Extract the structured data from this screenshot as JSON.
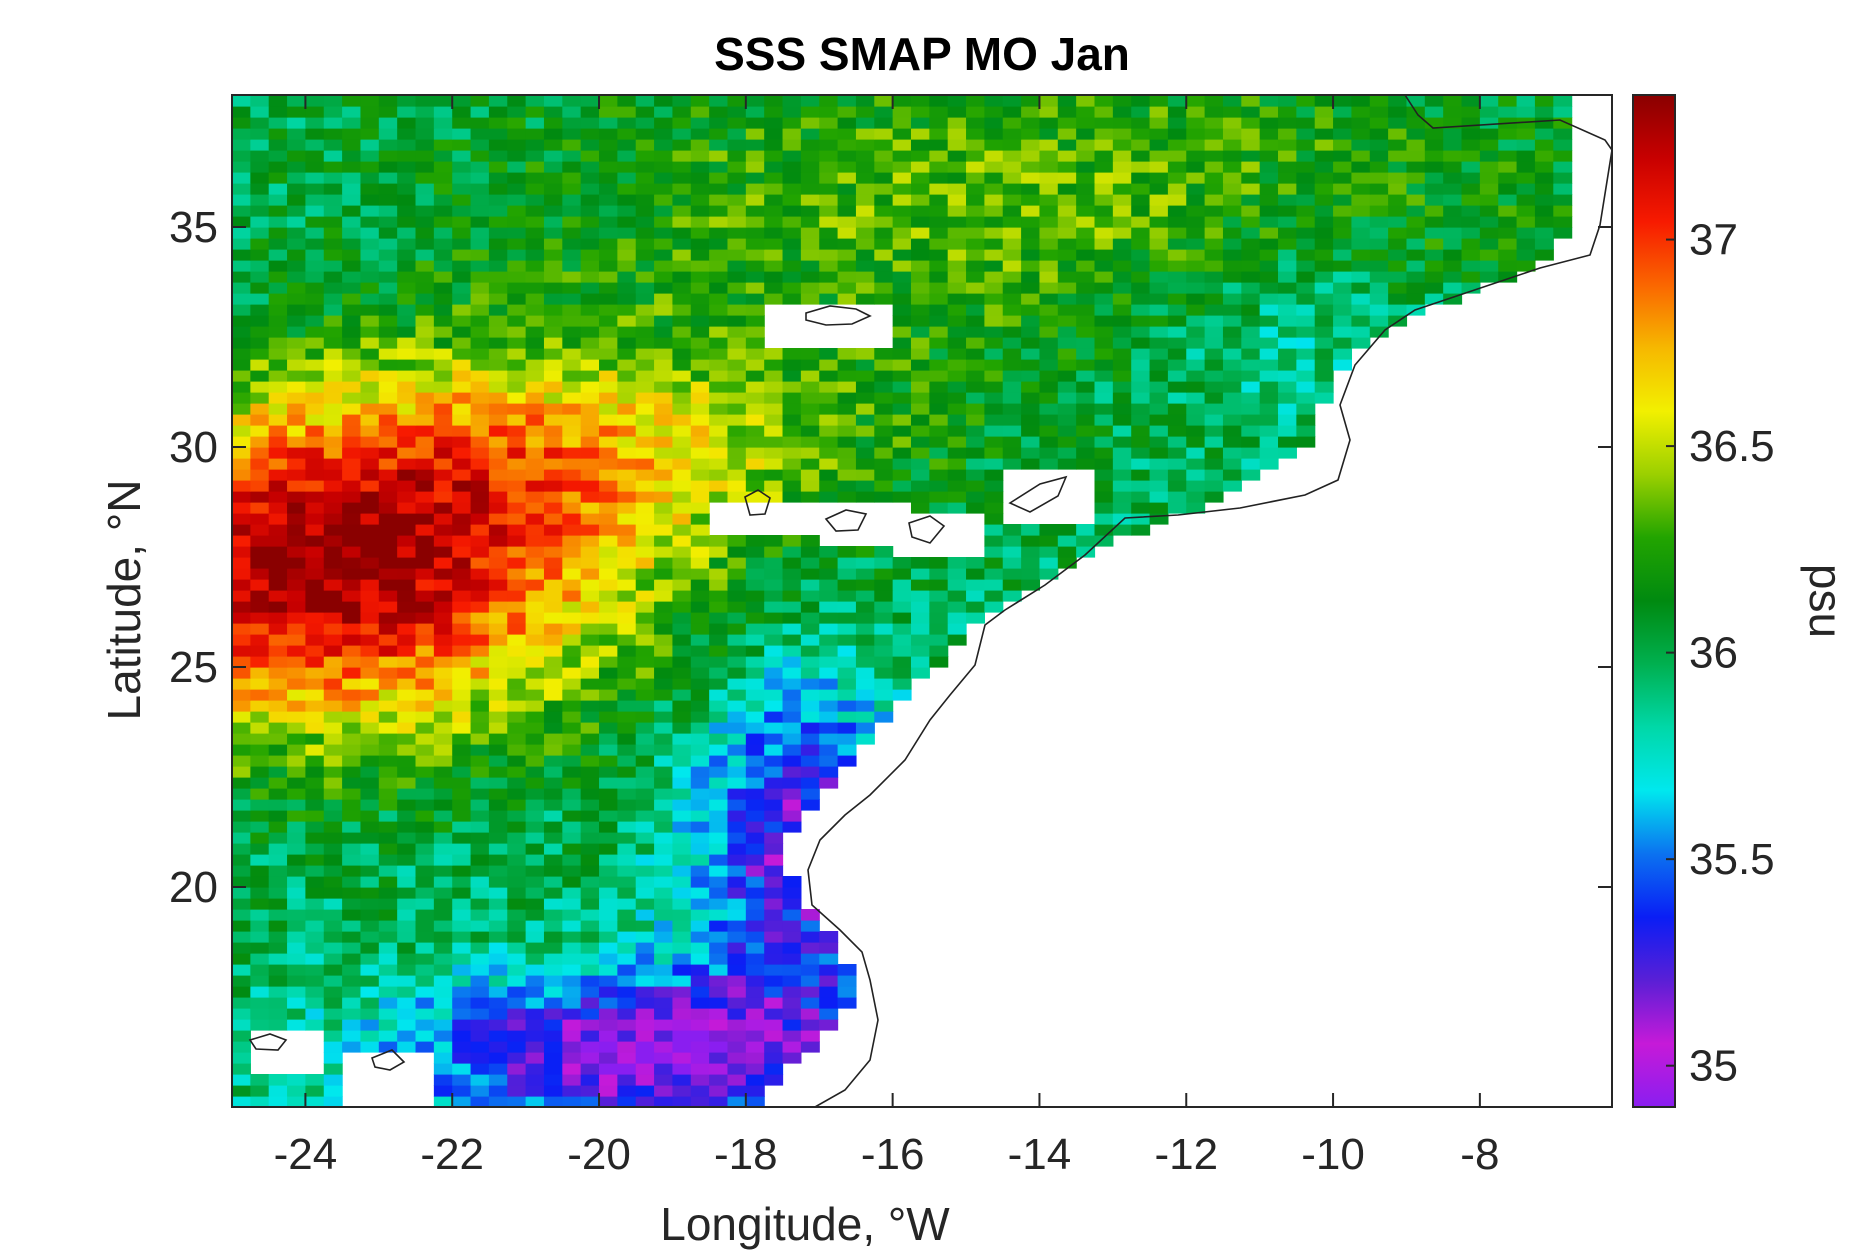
{
  "chart_data": {
    "type": "heatmap",
    "title": "SSS SMAP MO Jan",
    "xlabel": "Longitude, °W",
    "ylabel": "Latitude, °N",
    "colorbar_label": "psu",
    "xlim": [
      -25,
      -6.2
    ],
    "ylim": [
      15,
      38
    ],
    "x_ticks": [
      -24,
      -22,
      -20,
      -18,
      -16,
      -14,
      -12,
      -10,
      -8
    ],
    "x_tick_labels": [
      "-24",
      "-22",
      "-20",
      "-18",
      "-16",
      "-14",
      "-12",
      "-10",
      "-8"
    ],
    "y_ticks": [
      20,
      25,
      30,
      35
    ],
    "y_tick_labels": [
      "20",
      "25",
      "30",
      "35"
    ],
    "clim": [
      34.9,
      37.35
    ],
    "colorbar_ticks": [
      35,
      35.5,
      36,
      36.5,
      37
    ],
    "colorbar_tick_labels": [
      "35",
      "35.5",
      "36",
      "36.5",
      "37"
    ],
    "colormap": [
      "#8a1ef0",
      "#c61ad8",
      "#5a1fd6",
      "#0a1ef5",
      "#0b72f0",
      "#00e8ee",
      "#00d8a8",
      "#00b050",
      "#008a10",
      "#22a400",
      "#9bd000",
      "#f2f000",
      "#f6b800",
      "#fa6600",
      "#f71a00",
      "#c80000",
      "#8a0000"
    ],
    "grid_resolution_deg": 0.25,
    "grid": false,
    "colorbar_position": "right",
    "regions_approx_psu": [
      {
        "area": "west 26-29°N",
        "value": 37.2
      },
      {
        "area": "north 33-38°N",
        "value": 36.3
      },
      {
        "area": "coastal 17-25°N",
        "value": 35.2
      },
      {
        "area": "south 15-18°N",
        "value": 35.1
      }
    ]
  }
}
